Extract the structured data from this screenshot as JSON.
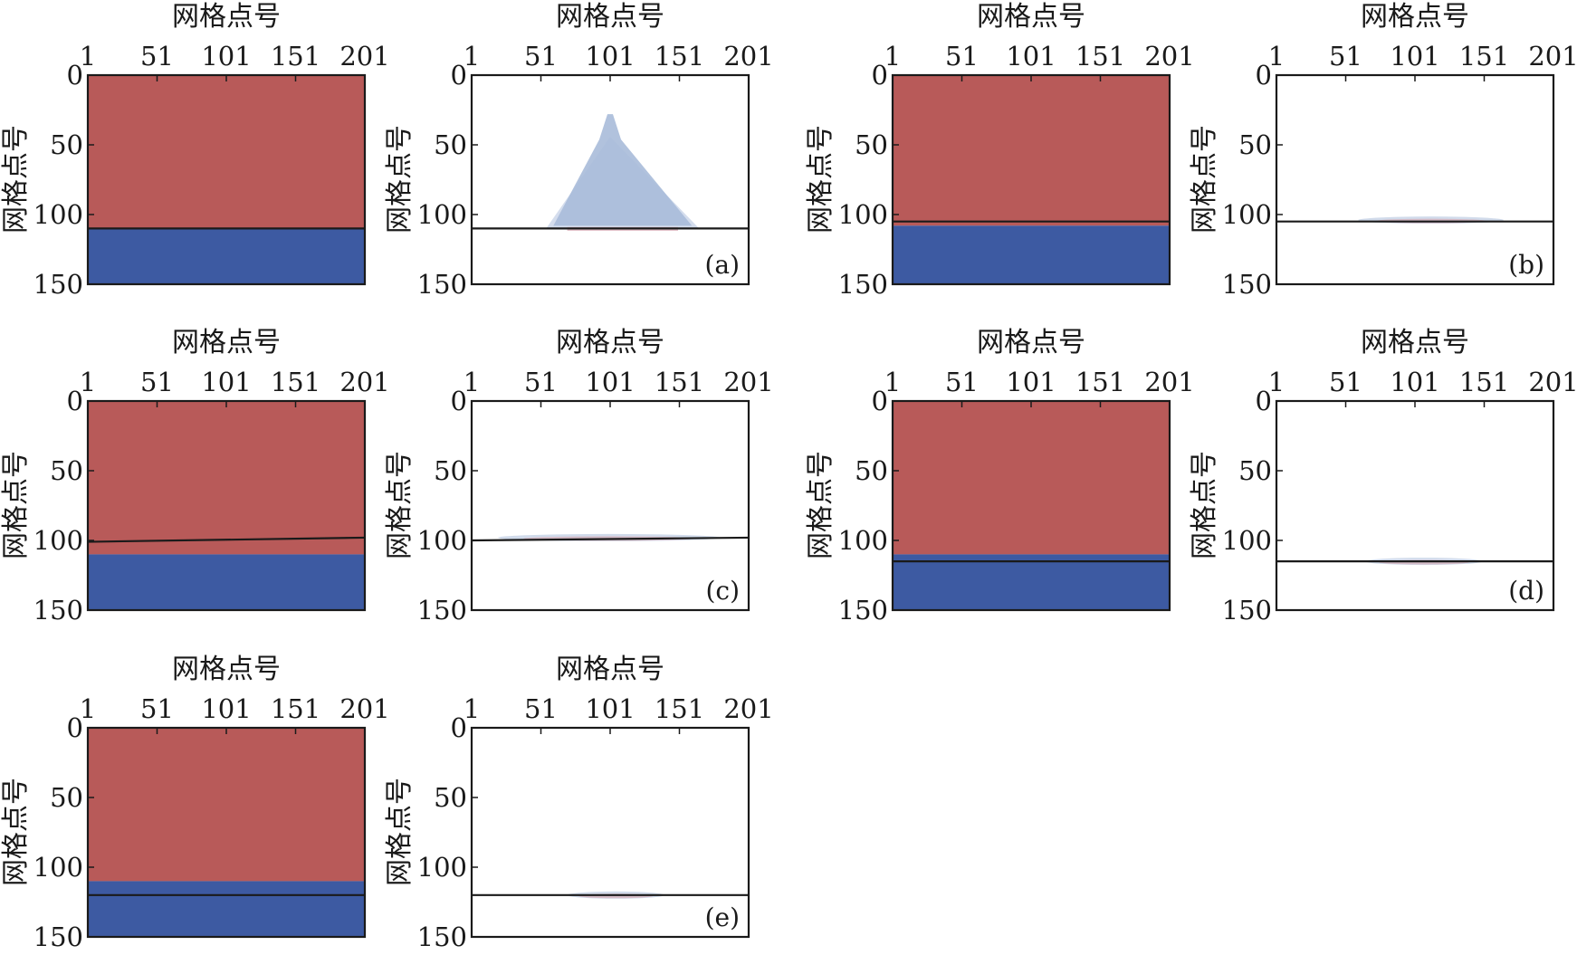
{
  "figure": {
    "axis_title": "网格点号",
    "x_ticks": [
      1,
      51,
      101,
      151,
      201
    ],
    "y_ticks": [
      0,
      50,
      100,
      150
    ]
  },
  "colors": {
    "upper_region": "#b85a59",
    "lower_region": "#3d5aa2",
    "line": "#1a1a1a",
    "residual_main": "#a9bbd9",
    "residual_light": "#c9d5e8",
    "residual_pink": "#d7a7b1"
  },
  "chart_data": [
    {
      "panel": "(a)",
      "left": {
        "type": "heatmap",
        "xlim": [
          1,
          201
        ],
        "ylim": [
          0,
          150
        ],
        "upper_region_bottom": 110,
        "line": [
          [
            1,
            110
          ],
          [
            201,
            110
          ]
        ]
      },
      "right": {
        "type": "area",
        "xlim": [
          1,
          201
        ],
        "ylim": [
          0,
          150
        ],
        "line": [
          [
            1,
            110
          ],
          [
            201,
            110
          ]
        ],
        "residual": {
          "shape": "peak",
          "x_start": 60,
          "x_end": 160,
          "peak_x": 101,
          "peak_y": 28,
          "base_y": 108
        }
      },
      "label": "(a)"
    },
    {
      "panel": "(b)",
      "left": {
        "type": "heatmap",
        "xlim": [
          1,
          201
        ],
        "ylim": [
          0,
          150
        ],
        "upper_region_bottom": 108,
        "line": [
          [
            1,
            105
          ],
          [
            201,
            105
          ]
        ]
      },
      "right": {
        "type": "area",
        "xlim": [
          1,
          201
        ],
        "ylim": [
          0,
          150
        ],
        "line": [
          [
            1,
            105
          ],
          [
            201,
            105
          ]
        ],
        "residual": {
          "shape": "thin",
          "x_start": 60,
          "x_end": 165,
          "y": 104
        }
      },
      "label": "(b)"
    },
    {
      "panel": "(c)",
      "left": {
        "type": "heatmap",
        "xlim": [
          1,
          201
        ],
        "ylim": [
          0,
          150
        ],
        "upper_region_bottom": 110,
        "line": [
          [
            1,
            101
          ],
          [
            201,
            98
          ]
        ]
      },
      "right": {
        "type": "area",
        "xlim": [
          1,
          201
        ],
        "ylim": [
          0,
          150
        ],
        "line": [
          [
            1,
            100
          ],
          [
            201,
            98
          ]
        ],
        "residual": {
          "shape": "thin",
          "x_start": 20,
          "x_end": 180,
          "y": 98
        }
      },
      "label": "(c)"
    },
    {
      "panel": "(d)",
      "left": {
        "type": "heatmap",
        "xlim": [
          1,
          201
        ],
        "ylim": [
          0,
          150
        ],
        "upper_region_bottom": 110,
        "line": [
          [
            1,
            115
          ],
          [
            201,
            115
          ]
        ]
      },
      "right": {
        "type": "area",
        "xlim": [
          1,
          201
        ],
        "ylim": [
          0,
          150
        ],
        "line": [
          [
            1,
            115
          ],
          [
            201,
            115
          ]
        ],
        "residual": {
          "shape": "thin",
          "x_start": 65,
          "x_end": 150,
          "y": 115
        }
      },
      "label": "(d)"
    },
    {
      "panel": "(e)",
      "left": {
        "type": "heatmap",
        "xlim": [
          1,
          201
        ],
        "ylim": [
          0,
          150
        ],
        "upper_region_bottom": 110,
        "line": [
          [
            1,
            120
          ],
          [
            201,
            120
          ]
        ]
      },
      "right": {
        "type": "area",
        "xlim": [
          1,
          201
        ],
        "ylim": [
          0,
          150
        ],
        "line": [
          [
            1,
            120
          ],
          [
            201,
            120
          ]
        ],
        "residual": {
          "shape": "thin",
          "x_start": 70,
          "x_end": 140,
          "y": 120
        }
      },
      "label": "(e)"
    }
  ]
}
